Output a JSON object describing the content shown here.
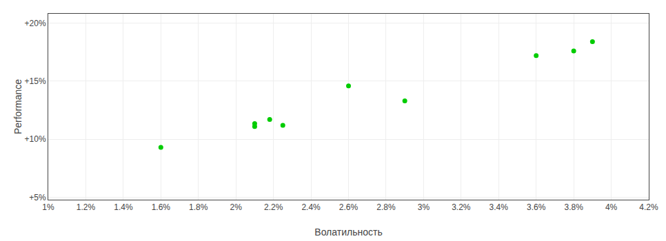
{
  "chart_data": {
    "type": "scatter",
    "xlabel": "Волатильность",
    "ylabel": "Performance",
    "x": [
      0.016,
      0.021,
      0.021,
      0.0218,
      0.0225,
      0.026,
      0.029,
      0.036,
      0.038,
      0.039
    ],
    "values": [
      0.093,
      0.1135,
      0.111,
      0.117,
      0.112,
      0.146,
      0.133,
      0.172,
      0.176,
      0.184
    ],
    "color": "#00cc00",
    "xlim": [
      0.01,
      0.042
    ],
    "ylim": [
      0.048,
      0.208
    ],
    "xticks": [
      {
        "value": 0.01,
        "label": "1%"
      },
      {
        "value": 0.012,
        "label": "1.2%"
      },
      {
        "value": 0.014,
        "label": "1.4%"
      },
      {
        "value": 0.016,
        "label": "1.6%"
      },
      {
        "value": 0.018,
        "label": "1.8%"
      },
      {
        "value": 0.02,
        "label": "2%"
      },
      {
        "value": 0.022,
        "label": "2.2%"
      },
      {
        "value": 0.024,
        "label": "2.4%"
      },
      {
        "value": 0.026,
        "label": "2.6%"
      },
      {
        "value": 0.028,
        "label": "2.8%"
      },
      {
        "value": 0.03,
        "label": "3%"
      },
      {
        "value": 0.032,
        "label": "3.2%"
      },
      {
        "value": 0.034,
        "label": "3.4%"
      },
      {
        "value": 0.036,
        "label": "3.6%"
      },
      {
        "value": 0.038,
        "label": "3.8%"
      },
      {
        "value": 0.04,
        "label": "4%"
      },
      {
        "value": 0.042,
        "label": "4.2%"
      }
    ],
    "yticks": [
      {
        "value": 0.05,
        "label": "+5%"
      },
      {
        "value": 0.1,
        "label": "+10%"
      },
      {
        "value": 0.15,
        "label": "+15%"
      },
      {
        "value": 0.2,
        "label": "+20%"
      }
    ],
    "grid": true
  }
}
